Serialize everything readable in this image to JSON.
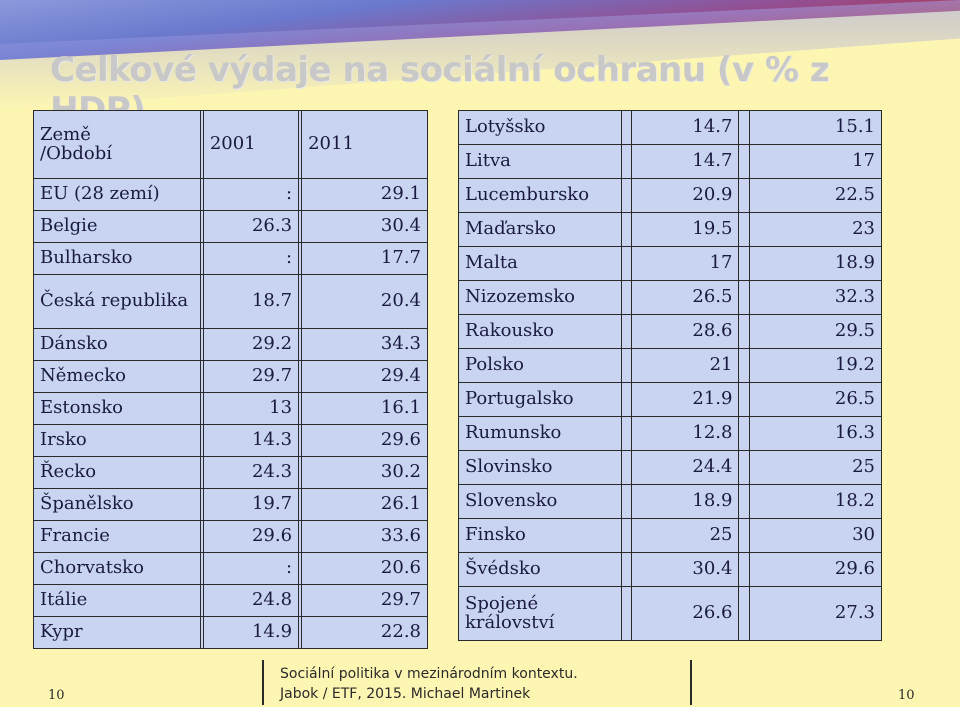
{
  "title": "Celkové výdaje na sociální ochranu (v % z HDP)",
  "left_table": {
    "header": {
      "country": "Země\n/Období",
      "y1": "2001",
      "y2": "2011"
    },
    "rows": [
      {
        "country": "EU (28 zemí)",
        "v1": ":",
        "v2": "29.1"
      },
      {
        "country": "Belgie",
        "v1": "26.3",
        "v2": "30.4"
      },
      {
        "country": "Bulharsko",
        "v1": ":",
        "v2": "17.7"
      },
      {
        "country": "Česká republika",
        "v1": "18.7",
        "v2": "20.4"
      },
      {
        "country": "Dánsko",
        "v1": "29.2",
        "v2": "34.3"
      },
      {
        "country": "Německo",
        "v1": "29.7",
        "v2": "29.4"
      },
      {
        "country": "Estonsko",
        "v1": "13",
        "v2": "16.1"
      },
      {
        "country": "Irsko",
        "v1": "14.3",
        "v2": "29.6"
      },
      {
        "country": "Řecko",
        "v1": "24.3",
        "v2": "30.2"
      },
      {
        "country": "Španělsko",
        "v1": "19.7",
        "v2": "26.1"
      },
      {
        "country": "Francie",
        "v1": "29.6",
        "v2": "33.6"
      },
      {
        "country": "Chorvatsko",
        "v1": ":",
        "v2": "20.6"
      },
      {
        "country": "Itálie",
        "v1": "24.8",
        "v2": "29.7"
      },
      {
        "country": "Kypr",
        "v1": "14.9",
        "v2": "22.8"
      }
    ]
  },
  "right_table": {
    "rows": [
      {
        "country": "Lotyšsko",
        "v1": "14.7",
        "v2": "15.1"
      },
      {
        "country": "Litva",
        "v1": "14.7",
        "v2": "17"
      },
      {
        "country": "Lucembursko",
        "v1": "20.9",
        "v2": "22.5"
      },
      {
        "country": "Maďarsko",
        "v1": "19.5",
        "v2": "23"
      },
      {
        "country": "Malta",
        "v1": "17",
        "v2": "18.9"
      },
      {
        "country": "Nizozemsko",
        "v1": "26.5",
        "v2": "32.3"
      },
      {
        "country": "Rakousko",
        "v1": "28.6",
        "v2": "29.5"
      },
      {
        "country": "Polsko",
        "v1": "21",
        "v2": "19.2"
      },
      {
        "country": "Portugalsko",
        "v1": "21.9",
        "v2": "26.5"
      },
      {
        "country": "Rumunsko",
        "v1": "12.8",
        "v2": "16.3"
      },
      {
        "country": "Slovinsko",
        "v1": "24.4",
        "v2": "25"
      },
      {
        "country": "Slovensko",
        "v1": "18.9",
        "v2": "18.2"
      },
      {
        "country": "Finsko",
        "v1": "25",
        "v2": "30"
      },
      {
        "country": "Švédsko",
        "v1": "30.4",
        "v2": "29.6"
      },
      {
        "country": "Spojené království",
        "v1": "26.6",
        "v2": "27.3"
      }
    ]
  },
  "footer": {
    "line1": "Sociální politika v mezinárodním kontextu.",
    "line2": "Jabok / ETF, 2015. Michael Martinek",
    "page_left": "10",
    "page_right": "10"
  }
}
